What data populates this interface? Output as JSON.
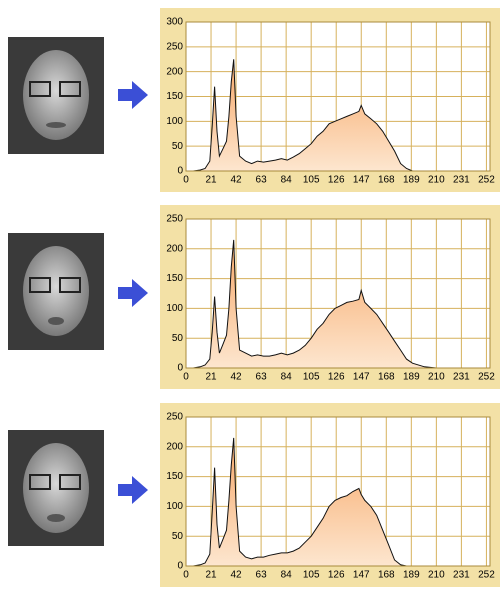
{
  "chart_data": [
    {
      "type": "area",
      "color": "#f7b47a",
      "grid": true,
      "x": [
        0,
        6,
        12,
        16,
        20,
        22,
        24,
        26,
        28,
        31,
        34,
        36,
        38,
        40,
        42,
        45,
        50,
        55,
        60,
        65,
        70,
        75,
        80,
        85,
        90,
        95,
        100,
        105,
        110,
        115,
        120,
        125,
        130,
        135,
        140,
        145,
        147,
        150,
        155,
        160,
        165,
        170,
        175,
        180,
        185,
        190,
        200,
        210,
        220,
        230,
        240,
        252
      ],
      "values": [
        0,
        0,
        2,
        5,
        20,
        90,
        170,
        80,
        30,
        45,
        60,
        110,
        180,
        225,
        110,
        30,
        20,
        15,
        20,
        18,
        20,
        22,
        25,
        22,
        28,
        35,
        45,
        55,
        70,
        80,
        95,
        100,
        105,
        110,
        115,
        120,
        132,
        115,
        105,
        95,
        80,
        60,
        40,
        15,
        5,
        0,
        0,
        0,
        0,
        0,
        0,
        0
      ],
      "xlim": [
        0,
        255
      ],
      "xticks": [
        0,
        21,
        42,
        63,
        84,
        105,
        126,
        147,
        168,
        189,
        210,
        231,
        252
      ],
      "ylim": [
        0,
        300
      ],
      "yticks": [
        0,
        50,
        100,
        150,
        200,
        250,
        300
      ]
    },
    {
      "type": "area",
      "color": "#f7b47a",
      "grid": true,
      "x": [
        0,
        6,
        12,
        16,
        20,
        22,
        24,
        26,
        28,
        31,
        34,
        36,
        38,
        40,
        42,
        45,
        50,
        55,
        60,
        65,
        70,
        75,
        80,
        85,
        90,
        95,
        100,
        105,
        110,
        115,
        120,
        125,
        130,
        135,
        140,
        145,
        147,
        150,
        155,
        160,
        165,
        170,
        175,
        180,
        185,
        190,
        200,
        210,
        220,
        230,
        240,
        252
      ],
      "values": [
        0,
        0,
        2,
        5,
        15,
        60,
        120,
        60,
        25,
        40,
        55,
        100,
        170,
        215,
        100,
        30,
        25,
        20,
        22,
        20,
        20,
        22,
        25,
        22,
        25,
        30,
        38,
        50,
        65,
        75,
        90,
        100,
        105,
        110,
        112,
        115,
        130,
        110,
        100,
        90,
        75,
        60,
        45,
        30,
        15,
        8,
        2,
        0,
        0,
        0,
        0,
        0
      ],
      "xlim": [
        0,
        255
      ],
      "xticks": [
        0,
        21,
        42,
        63,
        84,
        105,
        126,
        147,
        168,
        189,
        210,
        231,
        252
      ],
      "ylim": [
        0,
        250
      ],
      "yticks": [
        0,
        50,
        100,
        150,
        200,
        250
      ]
    },
    {
      "type": "area",
      "color": "#f7b47a",
      "grid": true,
      "x": [
        0,
        6,
        12,
        16,
        20,
        22,
        24,
        26,
        28,
        31,
        34,
        36,
        38,
        40,
        42,
        45,
        50,
        55,
        60,
        65,
        70,
        75,
        80,
        85,
        90,
        95,
        100,
        105,
        110,
        115,
        120,
        125,
        130,
        135,
        140,
        145,
        147,
        150,
        155,
        160,
        165,
        170,
        175,
        180,
        185,
        190,
        200,
        210,
        220,
        230,
        240,
        252
      ],
      "values": [
        0,
        0,
        2,
        5,
        20,
        90,
        165,
        70,
        30,
        45,
        60,
        110,
        170,
        215,
        100,
        25,
        15,
        12,
        15,
        15,
        18,
        20,
        22,
        22,
        25,
        30,
        40,
        50,
        65,
        80,
        100,
        110,
        115,
        118,
        125,
        130,
        120,
        110,
        100,
        85,
        60,
        35,
        10,
        2,
        0,
        0,
        0,
        0,
        0,
        0,
        0,
        0
      ],
      "xlim": [
        0,
        255
      ],
      "xticks": [
        0,
        21,
        42,
        63,
        84,
        105,
        126,
        147,
        168,
        189,
        210,
        231,
        252
      ],
      "ylim": [
        0,
        250
      ],
      "yticks": [
        0,
        50,
        100,
        150,
        200,
        250
      ]
    }
  ]
}
